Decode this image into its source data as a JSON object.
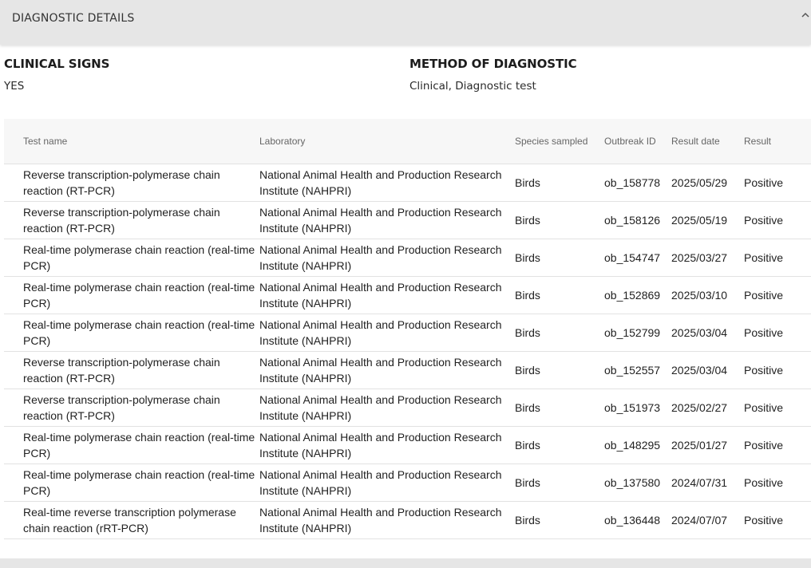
{
  "panel": {
    "title": "DIAGNOSTIC DETAILS"
  },
  "fields": {
    "clinical_signs_label": "CLINICAL SIGNS",
    "clinical_signs_value": "YES",
    "method_label": "METHOD OF DIAGNOSTIC",
    "method_value": "Clinical, Diagnostic test"
  },
  "table": {
    "headers": [
      "Test name",
      "Laboratory",
      "Species sampled",
      "Outbreak ID",
      "Result date",
      "Result"
    ],
    "rows": [
      [
        "Reverse transcription-polymerase chain reaction (RT-PCR)",
        "National Animal Health and Production Research Institute (NAHPRI)",
        "Birds",
        "ob_158778",
        "2025/05/29",
        "Positive"
      ],
      [
        "Reverse transcription-polymerase chain reaction (RT-PCR)",
        "National Animal Health and Production Research Institute (NAHPRI)",
        "Birds",
        "ob_158126",
        "2025/05/19",
        "Positive"
      ],
      [
        "Real-time polymerase chain reaction (real-time PCR)",
        "National Animal Health and Production Research Institute (NAHPRI)",
        "Birds",
        "ob_154747",
        "2025/03/27",
        "Positive"
      ],
      [
        "Real-time polymerase chain reaction (real-time PCR)",
        "National Animal Health and Production Research Institute (NAHPRI)",
        "Birds",
        "ob_152869",
        "2025/03/10",
        "Positive"
      ],
      [
        "Real-time polymerase chain reaction (real-time PCR)",
        "National Animal Health and Production Research Institute (NAHPRI)",
        "Birds",
        "ob_152799",
        "2025/03/04",
        "Positive"
      ],
      [
        "Reverse transcription-polymerase chain reaction (RT-PCR)",
        "National Animal Health and Production Research Institute (NAHPRI)",
        "Birds",
        "ob_152557",
        "2025/03/04",
        "Positive"
      ],
      [
        "Reverse transcription-polymerase chain reaction (RT-PCR)",
        "National Animal Health and Production Research Institute (NAHPRI)",
        "Birds",
        "ob_151973",
        "2025/02/27",
        "Positive"
      ],
      [
        "Real-time polymerase chain reaction (real-time PCR)",
        "National Animal Health and Production Research Institute (NAHPRI)",
        "Birds",
        "ob_148295",
        "2025/01/27",
        "Positive"
      ],
      [
        "Real-time polymerase chain reaction (real-time PCR)",
        "National Animal Health and Production Research Institute (NAHPRI)",
        "Birds",
        "ob_137580",
        "2024/07/31",
        "Positive"
      ],
      [
        "Real-time reverse transcription polymerase chain reaction (rRT-PCR)",
        "National Animal Health and Production Research Institute (NAHPRI)",
        "Birds",
        "ob_136448",
        "2024/07/07",
        "Positive"
      ]
    ]
  },
  "icons": {
    "collapse": "chevron-up-icon"
  }
}
